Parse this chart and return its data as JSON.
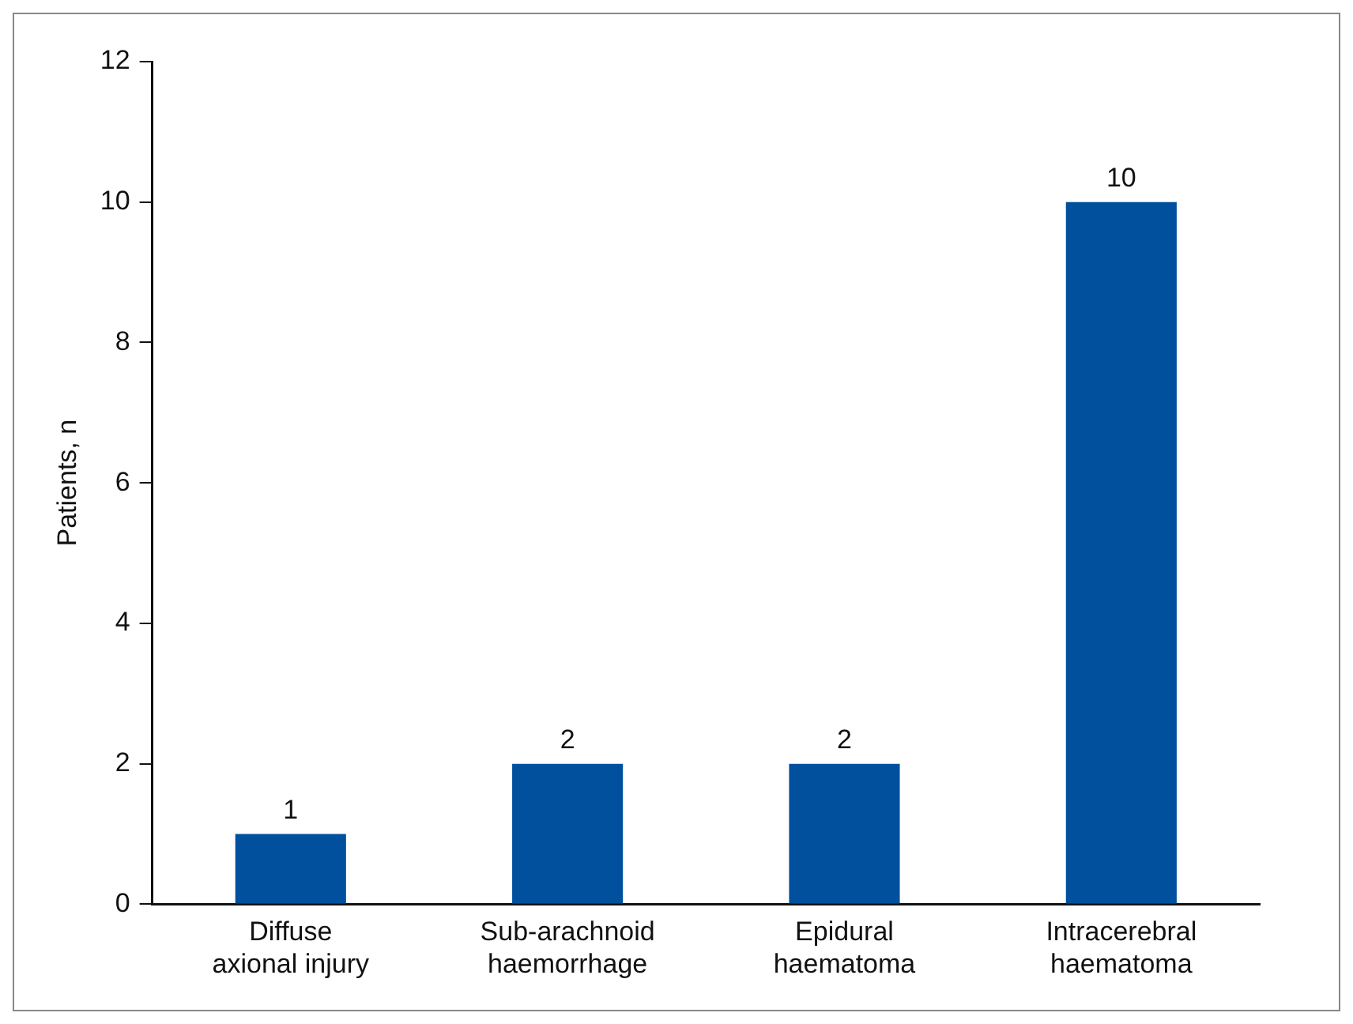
{
  "chart_data": {
    "type": "bar",
    "ylabel": "Patients, n",
    "categories": [
      "Diffuse\naxional injury",
      "Sub-arachnoid\nhaemorrhage",
      "Epidural\nhaematoma",
      "Intracerebral\nhaematoma"
    ],
    "values": [
      1,
      2,
      2,
      10
    ],
    "color": "#00509e",
    "ylim": [
      0,
      12
    ],
    "yticks": [
      0,
      2,
      4,
      6,
      8,
      10,
      12
    ],
    "grid": false,
    "legend": false,
    "data_labels": true
  }
}
